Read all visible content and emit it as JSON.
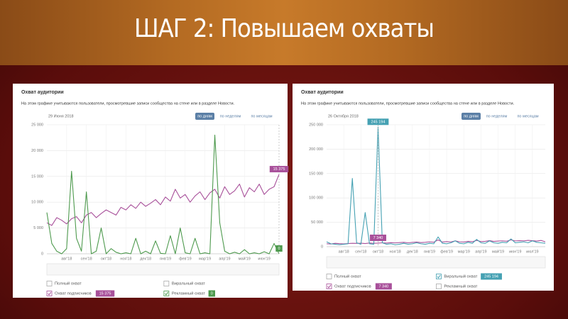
{
  "title": "ШАГ 2: Повышаем охваты",
  "chart_data": [
    {
      "type": "line",
      "title": "Охват аудитории",
      "subtitle": "На этом графике учитываются пользователи, просмотревшие записи сообщества на стене или в разделе Новости.",
      "date": "29 Июня 2018",
      "period_buttons": [
        {
          "label": "по дням",
          "active": true
        },
        {
          "label": "по неделям",
          "active": false
        },
        {
          "label": "по месяцам",
          "active": false
        }
      ],
      "categories": [
        null,
        null,
        null,
        null,
        "авг'18",
        null,
        null,
        null,
        "сен'18",
        null,
        null,
        null,
        "окт'18",
        null,
        null,
        null,
        "ноя'18",
        null,
        null,
        null,
        "дек'18",
        null,
        null,
        null,
        "янв'19",
        null,
        null,
        null,
        "фев'19",
        null,
        null,
        null,
        "мар'19",
        null,
        null,
        null,
        "апр'19",
        null,
        null,
        null,
        "май'19",
        null,
        null,
        null,
        "июн'19",
        null,
        null,
        null
      ],
      "ylim": [
        0,
        25000
      ],
      "yticks": [
        0,
        {
          "value": 5000,
          "label": "5 000"
        },
        {
          "value": 10000,
          "label": "10 000"
        },
        {
          "value": 15000,
          "label": "15 000"
        },
        {
          "value": 20000,
          "label": "20 000"
        },
        {
          "value": 25000,
          "label": "25 000"
        }
      ],
      "grid": true,
      "series": [
        {
          "name": "Полный охват",
          "visible": false
        },
        {
          "name": "Охват подписчиков",
          "visible": true,
          "color": "#a8509a",
          "values": [
            6000,
            5500,
            7000,
            6500,
            5800,
            6800,
            7200,
            6000,
            7500,
            8000,
            7000,
            7800,
            8500,
            8000,
            7500,
            9000,
            8500,
            9500,
            8800,
            10000,
            9200,
            9800,
            10500,
            9500,
            11000,
            10200,
            12500,
            10800,
            11500,
            10000,
            11200,
            12000,
            10500,
            11800,
            12500,
            10800,
            13000,
            11500,
            12200,
            13500,
            11000,
            12800,
            12000,
            13500,
            11500,
            12500,
            13000,
            15375
          ],
          "value_labels": [
            null,
            null,
            null,
            null,
            null,
            null,
            null,
            null,
            null,
            null,
            null,
            null,
            null,
            null,
            null,
            null,
            null,
            null,
            null,
            null,
            null,
            null,
            null,
            null,
            null,
            null,
            null,
            null,
            null,
            null,
            null,
            null,
            null,
            null,
            null,
            null,
            null,
            null,
            null,
            null,
            null,
            null,
            null,
            null,
            null,
            null,
            null,
            "15 375"
          ]
        },
        {
          "name": "Виральный охват",
          "visible": false
        },
        {
          "name": "Рекламный охват",
          "visible": true,
          "color": "#4e9a4e",
          "values": [
            8000,
            2000,
            500,
            0,
            1000,
            16000,
            3000,
            500,
            12000,
            0,
            500,
            5000,
            0,
            1000,
            300,
            0,
            200,
            0,
            3000,
            0,
            500,
            0,
            2500,
            100,
            0,
            3500,
            0,
            5000,
            200,
            0,
            3000,
            0,
            200,
            0,
            23000,
            6000,
            500,
            0,
            300,
            0,
            800,
            0,
            200,
            0,
            400,
            0,
            2000,
            0
          ]
        }
      ]
    },
    {
      "type": "line",
      "title": "Охват аудитории",
      "subtitle": "На этом графике учитываются пользователи, просмотревшие записи сообщества на стене или в разделе Новости.",
      "date": "26 Октября 2018",
      "period_buttons": [
        {
          "label": "по дням",
          "active": true
        },
        {
          "label": "по неделям",
          "active": false
        },
        {
          "label": "по месяцам",
          "active": false
        }
      ],
      "categories": [
        null,
        null,
        null,
        null,
        "авг'18",
        null,
        null,
        null,
        "сен'18",
        null,
        null,
        null,
        "окт'18",
        null,
        null,
        null,
        "ноя'18",
        null,
        null,
        null,
        "дек'18",
        null,
        null,
        null,
        "янв'19",
        null,
        null,
        null,
        "фев'19",
        null,
        null,
        null,
        "мар'19",
        null,
        null,
        null,
        "апр'19",
        null,
        null,
        null,
        "май'19",
        null,
        null,
        null,
        "июн'19",
        null,
        null,
        null,
        "июл'19",
        null,
        null,
        null
      ],
      "ylim": [
        0,
        250000
      ],
      "yticks": [
        0,
        {
          "value": 50000,
          "label": "50 000"
        },
        {
          "value": 100000,
          "label": "100 000"
        },
        {
          "value": 150000,
          "label": "150 000"
        },
        {
          "value": 200000,
          "label": "200 000"
        },
        {
          "value": 250000,
          "label": "250 000"
        }
      ],
      "grid": true,
      "series": [
        {
          "name": "Полный охват",
          "visible": false
        },
        {
          "name": "Охват подписчиков",
          "visible": true,
          "color": "#a8509a",
          "values": [
            6000,
            5500,
            7000,
            6200,
            5800,
            6500,
            7000,
            6800,
            7200,
            6500,
            7500,
            7000,
            7340,
            8000,
            7500,
            8200,
            7800,
            8500,
            9000,
            8000,
            8800,
            9500,
            8500,
            9000,
            10000,
            9200,
            14000,
            9500,
            10500,
            9800,
            12000,
            10000,
            9500,
            11000,
            10200,
            13000,
            10500,
            11000,
            12500,
            10800,
            11500,
            12000,
            11200,
            14000,
            11800,
            12500,
            12000,
            13000,
            12200,
            11500,
            12800,
            10000
          ],
          "value_labels": [
            null,
            null,
            null,
            null,
            null,
            null,
            null,
            null,
            null,
            null,
            null,
            null,
            "7 340",
            null,
            null,
            null,
            null,
            null,
            null,
            null,
            null,
            null,
            null,
            null,
            null,
            null,
            null,
            null,
            null,
            null,
            null,
            null,
            null,
            null,
            null,
            null,
            null,
            null,
            null,
            null,
            null,
            null,
            null,
            null,
            null,
            null,
            null,
            null,
            null,
            null,
            null,
            null
          ]
        },
        {
          "name": "Виральный охват",
          "visible": true,
          "color": "#45a1b3",
          "values": [
            10000,
            6000,
            5000,
            4000,
            5000,
            6000,
            140000,
            8000,
            5000,
            70000,
            6000,
            5000,
            245194,
            8000,
            5000,
            6000,
            4000,
            5000,
            7000,
            5000,
            6000,
            8000,
            6000,
            5000,
            7000,
            6000,
            20000,
            7000,
            6000,
            8000,
            12000,
            7000,
            6000,
            9000,
            7000,
            15000,
            8000,
            7000,
            12000,
            8000,
            7000,
            9000,
            8000,
            16000,
            8000,
            9000,
            10000,
            8000,
            12000,
            9000,
            8000,
            7000
          ],
          "value_labels": [
            null,
            null,
            null,
            null,
            null,
            null,
            null,
            null,
            null,
            null,
            null,
            null,
            "245 194",
            null,
            null,
            null,
            null,
            null,
            null,
            null,
            null,
            null,
            null,
            null,
            null,
            null,
            null,
            null,
            null,
            null,
            null,
            null,
            null,
            null,
            null,
            null,
            null,
            null,
            null,
            null,
            null,
            null,
            null,
            null,
            null,
            null,
            null,
            null,
            null,
            null,
            null,
            null
          ]
        },
        {
          "name": "Рекламный охват",
          "visible": false
        }
      ]
    }
  ]
}
